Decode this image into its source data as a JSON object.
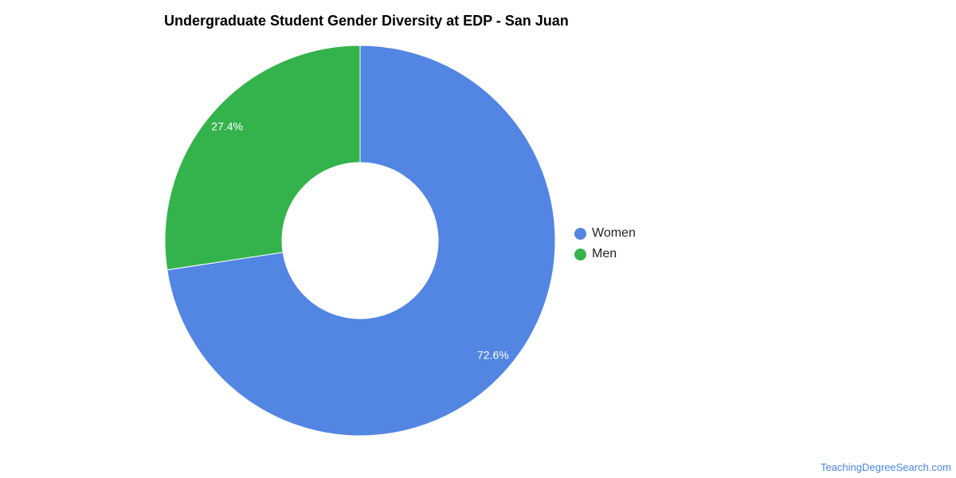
{
  "chart_data": {
    "type": "pie",
    "donut": true,
    "title": "Undergraduate Student Gender Diversity at EDP - San Juan",
    "slices": [
      {
        "label": "Women",
        "value": 72.6,
        "display": "72.6%",
        "color": "#5385e3"
      },
      {
        "label": "Men",
        "value": 27.4,
        "display": "27.4%",
        "color": "#34b34c"
      }
    ],
    "legend_position": "right"
  },
  "watermark": "TeachingDegreeSearch.com"
}
